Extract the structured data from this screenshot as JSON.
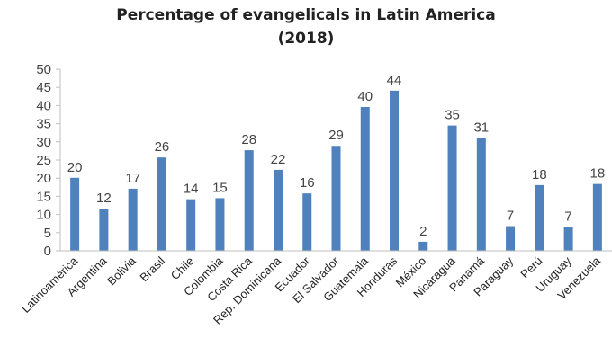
{
  "chart_data": {
    "type": "bar",
    "title": "Percentage of evangelicals in Latin America",
    "subtitle": "(2018)",
    "xlabel": "",
    "ylabel": "",
    "categories": [
      "Latinoamérica",
      "Argentina",
      "Bolivia",
      "Brasil",
      "Chile",
      "Colombia",
      "Costa Rica",
      "Rep. Dominicana",
      "Ecuador",
      "El Salvador",
      "Guatemala",
      "Honduras",
      "México",
      "Nicaragua",
      "Panamá",
      "Paraguay",
      "Perú",
      "Uruguay",
      "Venezuela"
    ],
    "values": [
      20,
      12,
      17,
      26,
      14,
      15,
      28,
      22,
      16,
      29,
      40,
      44,
      2,
      35,
      31,
      7,
      18,
      7,
      18
    ],
    "bar_heights": [
      20.1,
      11.6,
      17.1,
      25.7,
      14.2,
      14.5,
      27.7,
      22.3,
      15.8,
      28.9,
      39.6,
      44.1,
      2.5,
      34.5,
      31.1,
      6.8,
      18.1,
      6.6,
      18.4
    ],
    "ylim": [
      0,
      50
    ],
    "yticks": [
      0,
      5,
      10,
      15,
      20,
      25,
      30,
      35,
      40,
      45,
      50
    ],
    "grid": false,
    "legend": "none",
    "bar_color": "#4F81BD",
    "axis_color": "#BFBFBF"
  }
}
